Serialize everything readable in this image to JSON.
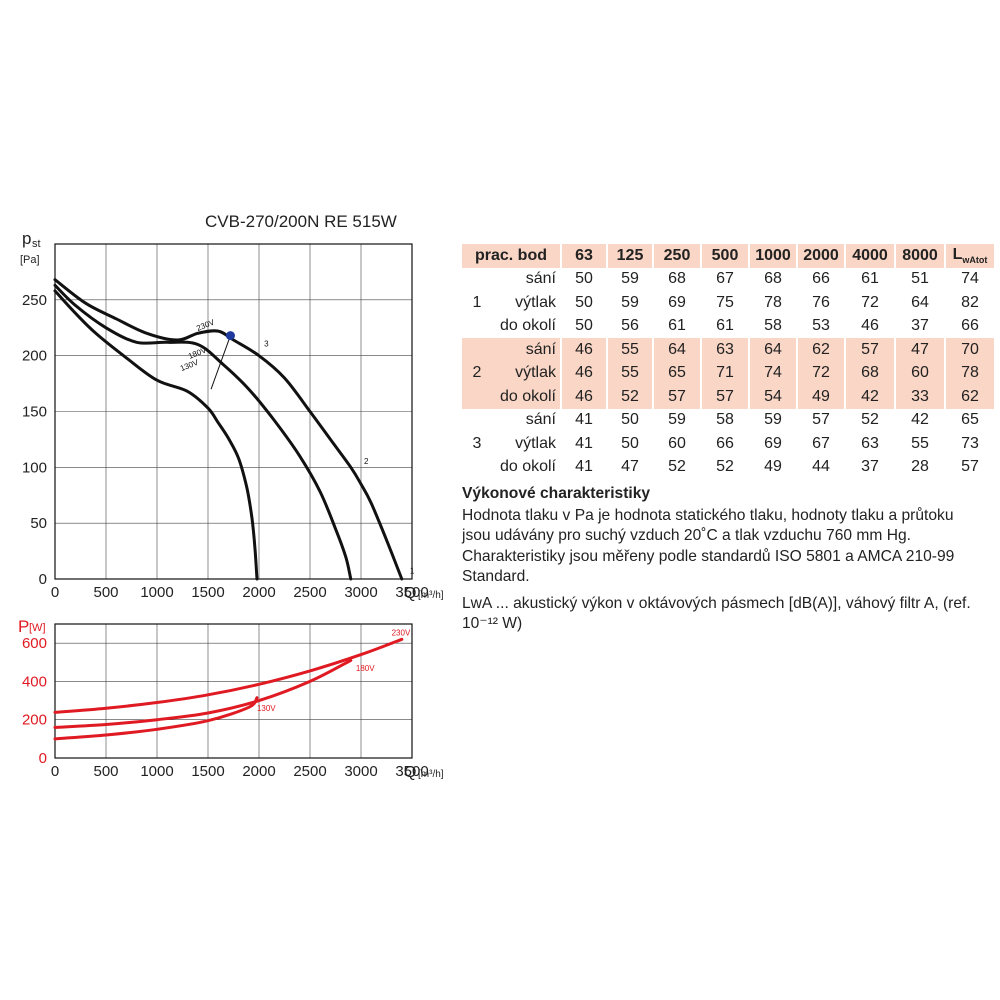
{
  "title": "CVB-270/200N RE 515W",
  "pressure_chart": {
    "ylabel_main": "p",
    "ylabel_sub": "st",
    "yunit": "[Pa]",
    "xlabel": "Q",
    "xunit": "[m³/h]",
    "xticks": [
      "0",
      "500",
      "1000",
      "1500",
      "2000",
      "2500",
      "3000",
      "3500"
    ],
    "yticks": [
      "0",
      "50",
      "100",
      "150",
      "200",
      "250"
    ]
  },
  "power_chart": {
    "ylabel_main": "P",
    "yunit": "[W]",
    "xlabel": "Q",
    "xunit": "[m³/h]",
    "xticks": [
      "0",
      "500",
      "1000",
      "1500",
      "2000",
      "2500",
      "3000",
      "3500"
    ],
    "yticks": [
      "0",
      "200",
      "400",
      "600"
    ]
  },
  "chart_data": [
    {
      "type": "line",
      "ylabel": "pst [Pa]",
      "xlabel": "Q [m³/h]",
      "xlim": [
        0,
        3500
      ],
      "ylim": [
        0,
        300
      ],
      "grid": true,
      "series": [
        {
          "name": "230V",
          "x": [
            0,
            300,
            600,
            900,
            1200,
            1400,
            1600,
            1750,
            2000,
            2250,
            2500,
            2700,
            2900,
            3000,
            3100,
            3250,
            3400
          ],
          "y": [
            268,
            247,
            233,
            220,
            214,
            220,
            222,
            214,
            200,
            180,
            150,
            125,
            100,
            85,
            68,
            35,
            0
          ]
        },
        {
          "name": "180V",
          "x": [
            0,
            200,
            500,
            800,
            1100,
            1400,
            1650,
            1900,
            2150,
            2400,
            2600,
            2750,
            2850,
            2900
          ],
          "y": [
            263,
            245,
            225,
            212,
            212,
            210,
            192,
            170,
            142,
            110,
            78,
            45,
            20,
            0
          ]
        },
        {
          "name": "130V",
          "x": [
            0,
            200,
            400,
            700,
            1000,
            1300,
            1500,
            1600,
            1700,
            1800,
            1880,
            1930,
            1960,
            1980
          ],
          "y": [
            258,
            238,
            220,
            198,
            178,
            168,
            153,
            140,
            126,
            108,
            82,
            55,
            28,
            0
          ]
        }
      ],
      "operating_point": {
        "x": 1720,
        "y": 218
      },
      "point_labels": [
        {
          "text": "1",
          "x": 3480,
          "y": 5
        },
        {
          "text": "2",
          "x": 3030,
          "y": 103
        },
        {
          "text": "3",
          "x": 2050,
          "y": 208
        },
        {
          "text": "230V",
          "x": 1400,
          "y": 222
        },
        {
          "text": "180V",
          "x": 1320,
          "y": 197
        },
        {
          "text": "130V",
          "x": 1240,
          "y": 186
        }
      ]
    },
    {
      "type": "line",
      "ylabel": "P [W]",
      "xlabel": "Q [m³/h]",
      "xlim": [
        0,
        3500
      ],
      "ylim": [
        0,
        700
      ],
      "grid": true,
      "series": [
        {
          "name": "230V",
          "x": [
            0,
            500,
            1000,
            1500,
            2000,
            2500,
            3000,
            3400
          ],
          "y": [
            238,
            260,
            290,
            330,
            385,
            455,
            540,
            620
          ]
        },
        {
          "name": "180V",
          "x": [
            0,
            500,
            1000,
            1500,
            2000,
            2500,
            2900
          ],
          "y": [
            160,
            175,
            200,
            235,
            300,
            400,
            510
          ]
        },
        {
          "name": "130V",
          "x": [
            0,
            500,
            1000,
            1500,
            1900,
            1980
          ],
          "y": [
            100,
            120,
            150,
            195,
            265,
            315
          ]
        }
      ],
      "point_labels": [
        {
          "text": "230V",
          "x": 3300,
          "y": 640
        },
        {
          "text": "180V",
          "x": 2950,
          "y": 455
        },
        {
          "text": "130V",
          "x": 1980,
          "y": 245
        }
      ]
    }
  ],
  "table": {
    "header": [
      "prac. bod",
      "63",
      "125",
      "250",
      "500",
      "1000",
      "2000",
      "4000",
      "8000"
    ],
    "lwa_main": "L",
    "lwa_sub": "wAtot",
    "groups": [
      {
        "point": "1",
        "highlight": false,
        "rows": [
          {
            "mode": "sání",
            "values": [
              "50",
              "59",
              "68",
              "67",
              "68",
              "66",
              "61",
              "51",
              "74"
            ]
          },
          {
            "mode": "výtlak",
            "values": [
              "50",
              "59",
              "69",
              "75",
              "78",
              "76",
              "72",
              "64",
              "82"
            ]
          },
          {
            "mode": "do okolí",
            "values": [
              "50",
              "56",
              "61",
              "61",
              "58",
              "53",
              "46",
              "37",
              "66"
            ]
          }
        ]
      },
      {
        "point": "2",
        "highlight": true,
        "rows": [
          {
            "mode": "sání",
            "values": [
              "46",
              "55",
              "64",
              "63",
              "64",
              "62",
              "57",
              "47",
              "70"
            ]
          },
          {
            "mode": "výtlak",
            "values": [
              "46",
              "55",
              "65",
              "71",
              "74",
              "72",
              "68",
              "60",
              "78"
            ]
          },
          {
            "mode": "do okolí",
            "values": [
              "46",
              "52",
              "57",
              "57",
              "54",
              "49",
              "42",
              "33",
              "62"
            ]
          }
        ]
      },
      {
        "point": "3",
        "highlight": false,
        "rows": [
          {
            "mode": "sání",
            "values": [
              "41",
              "50",
              "59",
              "58",
              "59",
              "57",
              "52",
              "42",
              "65"
            ]
          },
          {
            "mode": "výtlak",
            "values": [
              "41",
              "50",
              "60",
              "66",
              "69",
              "67",
              "63",
              "55",
              "73"
            ]
          },
          {
            "mode": "do okolí",
            "values": [
              "41",
              "47",
              "52",
              "52",
              "49",
              "44",
              "37",
              "28",
              "57"
            ]
          }
        ]
      }
    ]
  },
  "description": {
    "heading": "Výkonové charakteristiky",
    "para1": "Hodnota tlaku v Pa je hodnota statického tlaku, hodnoty tlaku a průtoku jsou udávány pro suchý vzduch 20˚C a tlak vzduchu 760 mm Hg. Charakteristiky jsou měřeny podle standardů ISO 5801 a AMCA 210-99 Standard.",
    "para2": "LwA ... akustický výkon v oktávových pásmech [dB(A)], váhový filtr A, (ref. 10⁻¹² W)"
  },
  "colors": {
    "pressure_curve": "#111111",
    "power_curve": "#e01a22",
    "operating_point": "#1f3a9c",
    "highlight_row": "#f9d6c5",
    "grid": "#444444"
  }
}
